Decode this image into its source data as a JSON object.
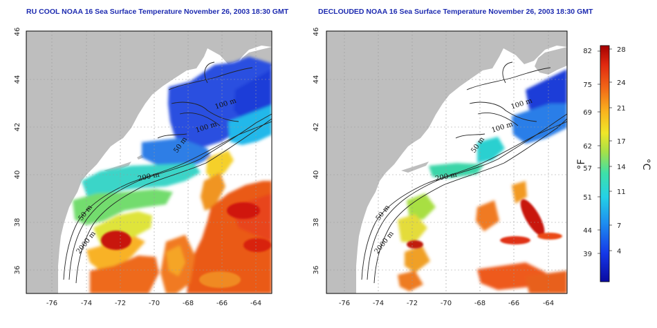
{
  "maps": [
    {
      "title": "RU COOL NOAA 16 Sea Surface Temperature November 26, 2003 18:30 GMT"
    },
    {
      "title": "DECLOUDED NOAA 16 Sea Surface Temperature November 26, 2003 18:30 GMT"
    }
  ],
  "axes": {
    "lon_ticks": [
      "-76",
      "-74",
      "-72",
      "-70",
      "-68",
      "-66",
      "-64"
    ],
    "lat_ticks": [
      "36",
      "38",
      "40",
      "42",
      "44",
      "46"
    ],
    "lon_range": [
      -77.3,
      -63.2
    ],
    "lat_range": [
      35.0,
      46.0
    ]
  },
  "isobath_labels": [
    "100 m",
    "100 m",
    "50 m",
    "200 m",
    "50 m",
    "2000 m"
  ],
  "colorbar": {
    "fahrenheit_ticks": [
      "82",
      "75",
      "69",
      "62",
      "57",
      "51",
      "44",
      "39"
    ],
    "celsius_ticks": [
      "28",
      "24",
      "21",
      "17",
      "14",
      "11",
      "7",
      "4"
    ],
    "fahrenheit_unit": "°F",
    "celsius_unit": "°C",
    "range_c": [
      0,
      28.5
    ]
  },
  "colors": {
    "land": "#bebebe",
    "no_data": "#ffffff",
    "title": "#1d2bb0",
    "grid": "#9a9a9a"
  }
}
